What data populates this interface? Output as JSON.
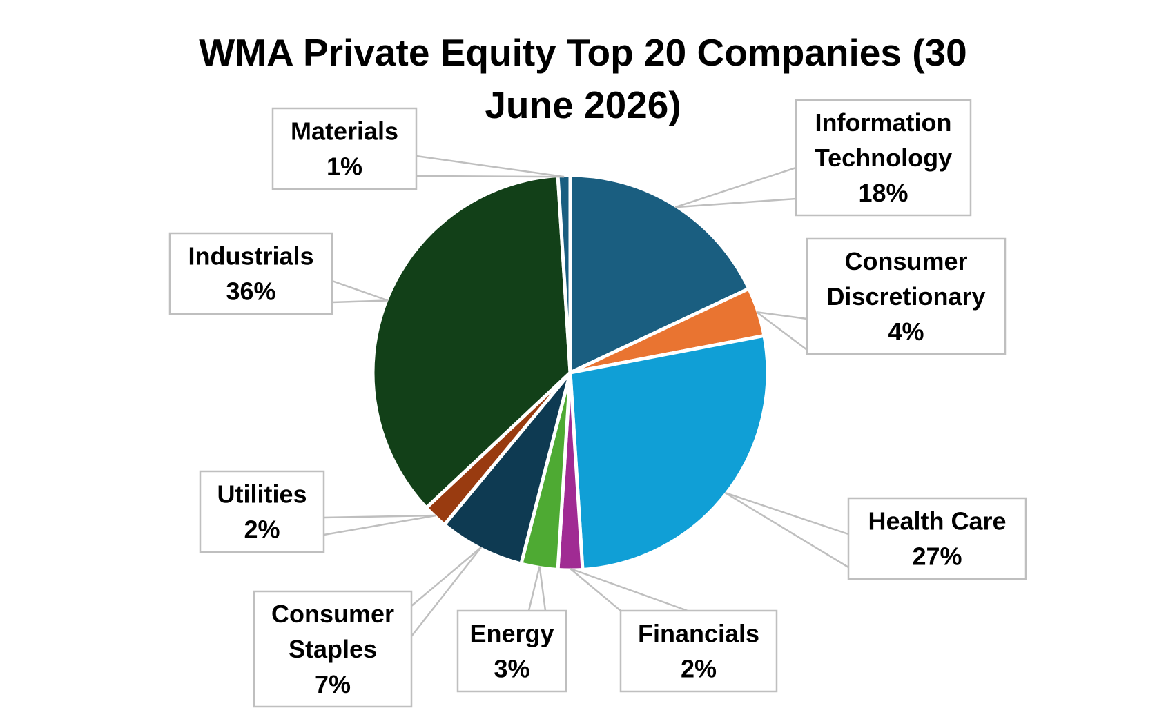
{
  "chart_data": {
    "type": "pie",
    "title": "WMA Private Equity Top 20 Companies (30 June 2026)",
    "title_lines": [
      "WMA Private Equity Top 20 Companies (30",
      "June 2026)"
    ],
    "slices": [
      {
        "label": "Information Technology",
        "label_lines": [
          "Information",
          "Technology"
        ],
        "value": 18,
        "display": "18%",
        "color": "#1a5e80"
      },
      {
        "label": "Consumer Discretionary",
        "label_lines": [
          "Consumer",
          "Discretionary"
        ],
        "value": 4,
        "display": "4%",
        "color": "#e97431"
      },
      {
        "label": "Health Care",
        "label_lines": [
          "Health Care"
        ],
        "value": 27,
        "display": "27%",
        "color": "#109fd6"
      },
      {
        "label": "Financials",
        "label_lines": [
          "Financials"
        ],
        "value": 2,
        "display": "2%",
        "color": "#a02b93"
      },
      {
        "label": "Energy",
        "label_lines": [
          "Energy"
        ],
        "value": 3,
        "display": "3%",
        "color": "#4eaa33"
      },
      {
        "label": "Consumer Staples",
        "label_lines": [
          "Consumer",
          "Staples"
        ],
        "value": 7,
        "display": "7%",
        "color": "#0e3a52"
      },
      {
        "label": "Utilities",
        "label_lines": [
          "Utilities"
        ],
        "value": 2,
        "display": "2%",
        "color": "#993b10"
      },
      {
        "label": "Industrials",
        "label_lines": [
          "Industrials"
        ],
        "value": 36,
        "display": "36%",
        "color": "#124018"
      },
      {
        "label": "Materials",
        "label_lines": [
          "Materials"
        ],
        "value": 1,
        "display": "1%",
        "color": "#1a5e80"
      }
    ],
    "legend": "none",
    "data_labels": "callouts with category name and percentage"
  }
}
